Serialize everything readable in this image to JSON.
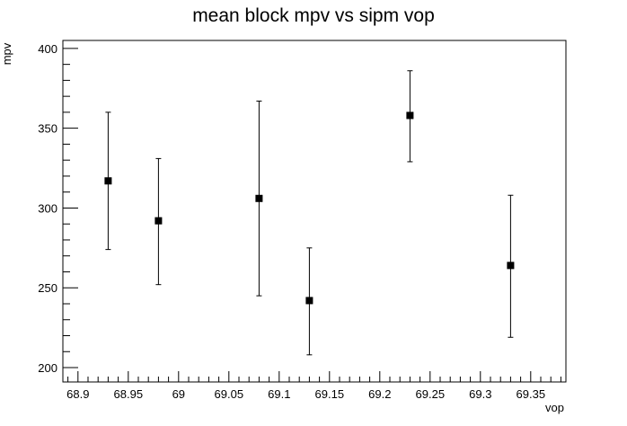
{
  "chart_data": {
    "type": "scatter",
    "title": "mean block mpv vs sipm vop",
    "xlabel": "vop",
    "ylabel": "mpv",
    "xlim": [
      68.885,
      69.385
    ],
    "ylim": [
      191,
      405
    ],
    "x_ticks": [
      68.9,
      68.95,
      69,
      69.05,
      69.1,
      69.15,
      69.2,
      69.25,
      69.3,
      69.35
    ],
    "x_tick_labels": [
      "68.9",
      "68.95",
      "69",
      "69.05",
      "69.1",
      "69.15",
      "69.2",
      "69.25",
      "69.3",
      "69.35"
    ],
    "y_ticks": [
      200,
      250,
      300,
      350,
      400
    ],
    "y_tick_labels": [
      "200",
      "250",
      "300",
      "350",
      "400"
    ],
    "grid": false,
    "marker": "filled-square",
    "color": "#000000",
    "points": [
      {
        "x": 68.93,
        "y": 317,
        "err_low": 274,
        "err_high": 360
      },
      {
        "x": 68.98,
        "y": 292,
        "err_low": 252,
        "err_high": 331
      },
      {
        "x": 69.08,
        "y": 306,
        "err_low": 245,
        "err_high": 367
      },
      {
        "x": 69.13,
        "y": 242,
        "err_low": 208,
        "err_high": 275
      },
      {
        "x": 69.23,
        "y": 358,
        "err_low": 329,
        "err_high": 386
      },
      {
        "x": 69.33,
        "y": 264,
        "err_low": 219,
        "err_high": 308
      }
    ]
  }
}
